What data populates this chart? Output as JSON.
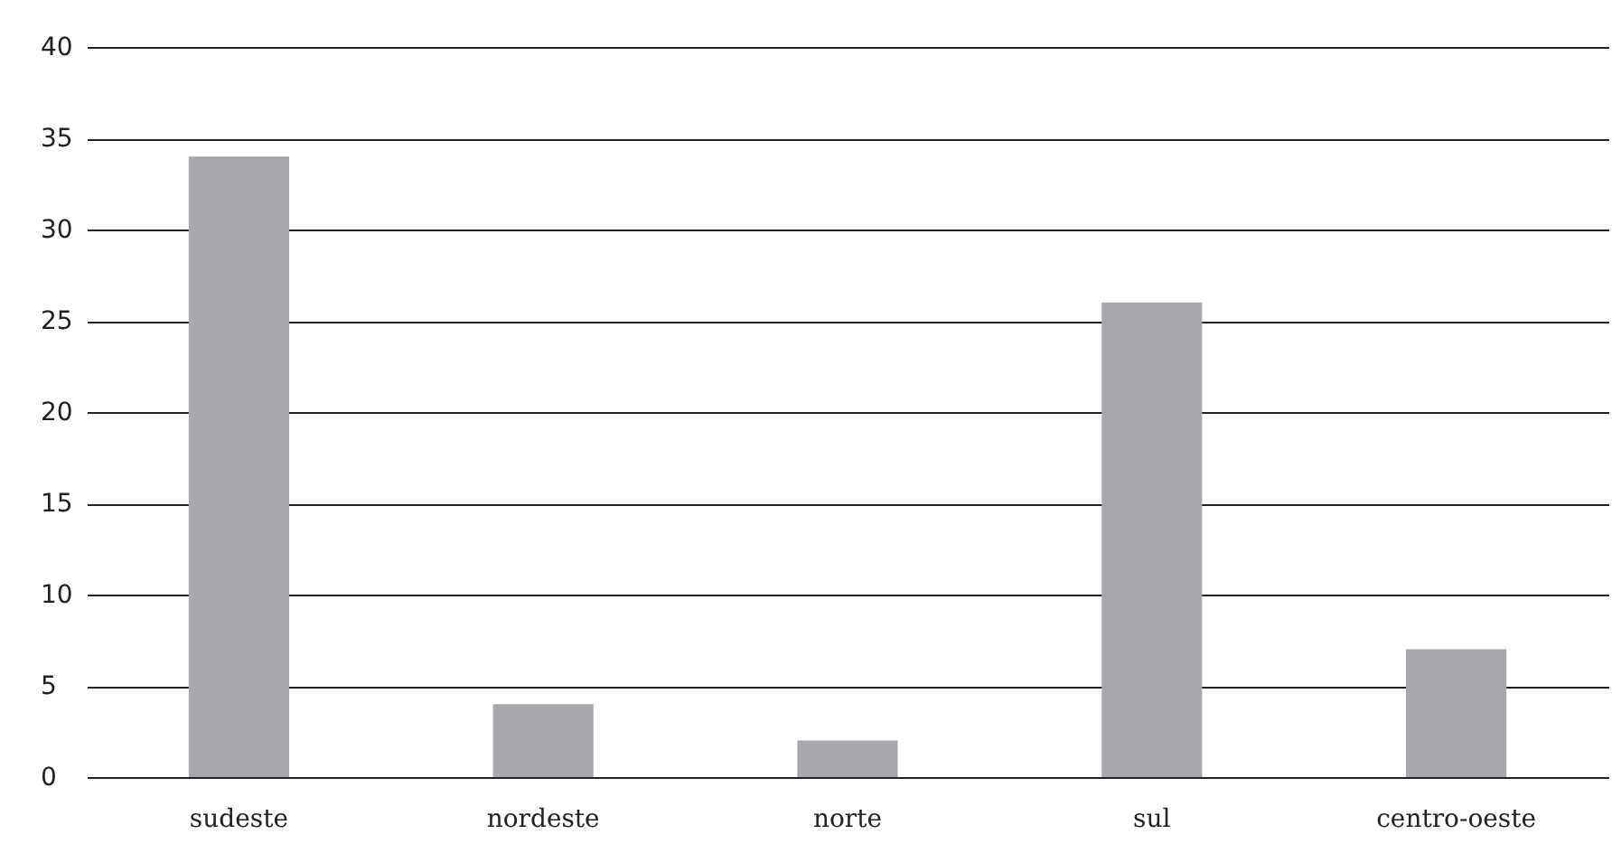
{
  "chart_data": {
    "type": "bar",
    "categories": [
      "sudeste",
      "nordeste",
      "norte",
      "sul",
      "centro-oeste"
    ],
    "values": [
      34,
      4,
      2,
      26,
      7
    ],
    "color": "#a7a8ab",
    "ylim": [
      0,
      40
    ],
    "yticks": [
      0,
      5,
      10,
      15,
      20,
      25,
      30,
      35,
      40
    ],
    "grid": "y"
  }
}
